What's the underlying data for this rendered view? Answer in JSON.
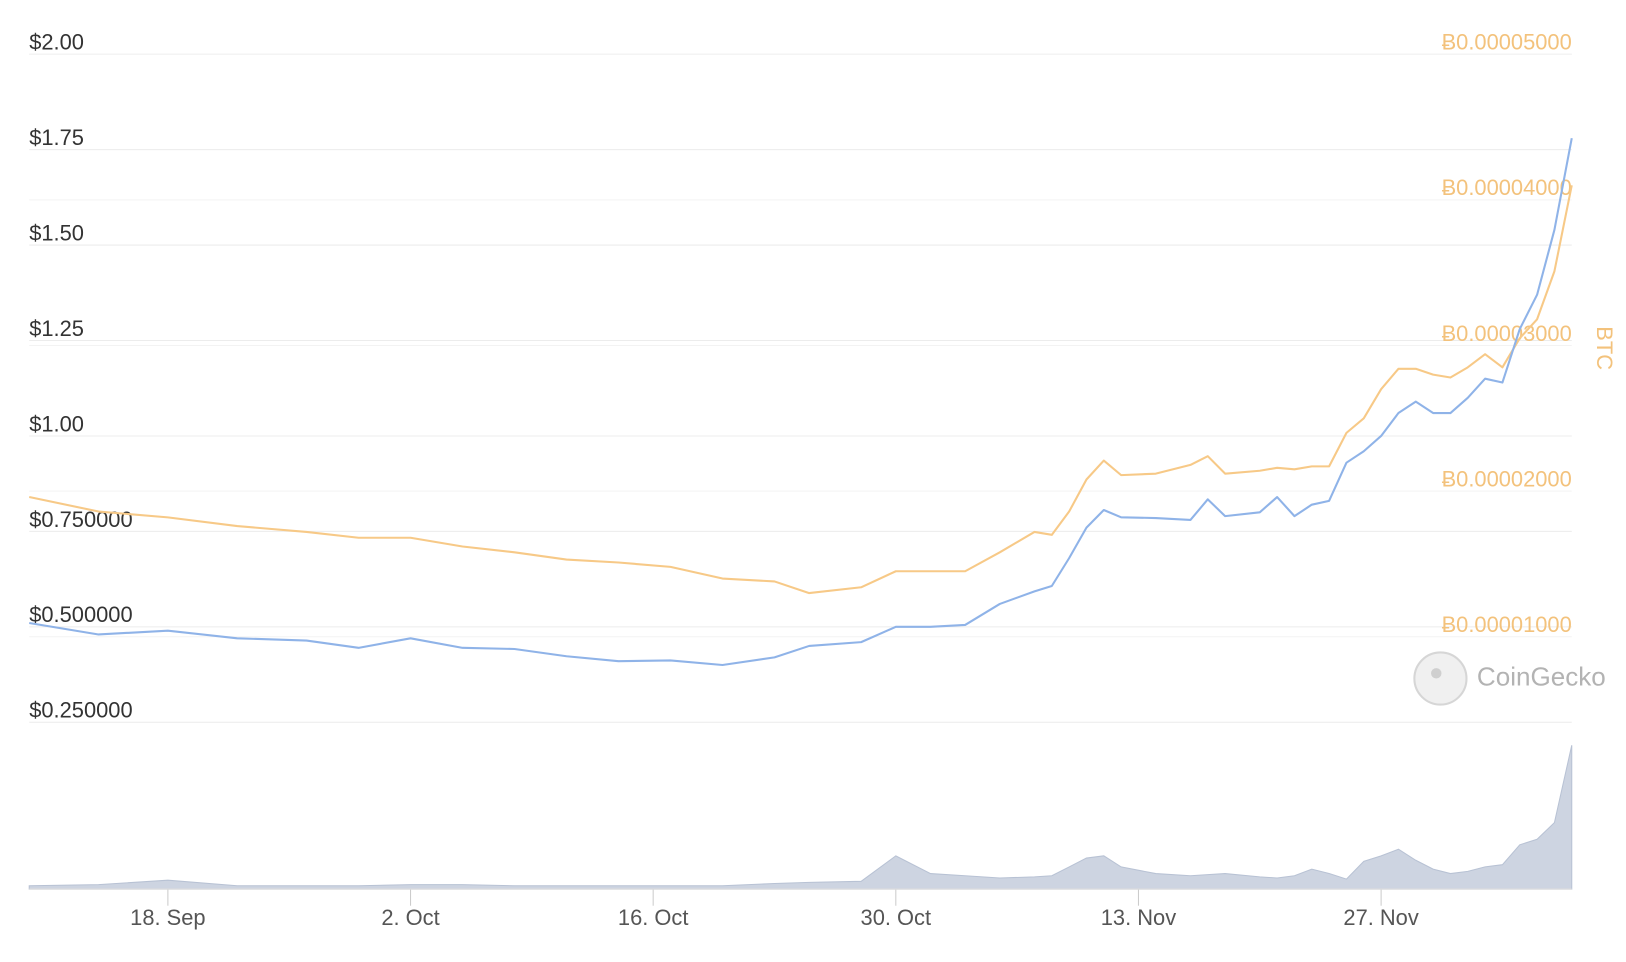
{
  "chart_data": {
    "type": "line",
    "y2label": "BTC",
    "watermark": "CoinGecko",
    "x": [
      "10. Sep",
      "14. Sep",
      "18. Sep",
      "22. Sep",
      "26. Sep",
      "29. Sep",
      "2. Oct",
      "5. Oct",
      "8. Oct",
      "11. Oct",
      "14. Oct",
      "17. Oct",
      "20. Oct",
      "23. Oct",
      "25. Oct",
      "28. Oct",
      "30. Oct",
      "1. Nov",
      "3. Nov",
      "5. Nov",
      "7. Nov",
      "8. Nov",
      "9. Nov",
      "10. Nov",
      "11. Nov",
      "12. Nov",
      "14. Nov",
      "16. Nov",
      "17. Nov",
      "18. Nov",
      "20. Nov",
      "21. Nov",
      "22. Nov",
      "23. Nov",
      "24. Nov",
      "25. Nov",
      "26. Nov",
      "27. Nov",
      "28. Nov",
      "29. Nov",
      "30. Nov",
      "1. Dec",
      "2. Dec",
      "3. Dec",
      "4. Dec",
      "5. Dec",
      "6. Dec",
      "7. Dec",
      "8. Dec"
    ],
    "series": [
      {
        "color": "#8fb3e8",
        "axis": "y",
        "values": [
          0.51,
          0.48,
          0.49,
          0.47,
          0.464,
          0.445,
          0.47,
          0.445,
          0.442,
          0.423,
          0.41,
          0.412,
          0.4,
          0.42,
          0.45,
          0.46,
          0.5,
          0.5,
          0.505,
          0.56,
          0.593,
          0.607,
          0.68,
          0.76,
          0.806,
          0.787,
          0.785,
          0.78,
          0.834,
          0.79,
          0.8,
          0.84,
          0.79,
          0.82,
          0.83,
          0.93,
          0.96,
          1.0,
          1.06,
          1.09,
          1.06,
          1.06,
          1.1,
          1.15,
          1.14,
          1.28,
          1.37,
          1.54,
          1.78
        ]
      },
      {
        "color": "#f7c987",
        "axis": "y2",
        "values": [
          1.96e-05,
          1.86e-05,
          1.82e-05,
          1.76e-05,
          1.72e-05,
          1.68e-05,
          1.68e-05,
          1.62e-05,
          1.58e-05,
          1.53e-05,
          1.51e-05,
          1.48e-05,
          1.4e-05,
          1.38e-05,
          1.3e-05,
          1.34e-05,
          1.45e-05,
          1.45e-05,
          1.45e-05,
          1.58e-05,
          1.72e-05,
          1.7e-05,
          1.86e-05,
          2.08e-05,
          2.21e-05,
          2.11e-05,
          2.12e-05,
          2.18e-05,
          2.24e-05,
          2.12e-05,
          2.14e-05,
          2.16e-05,
          2.15e-05,
          2.17e-05,
          2.17e-05,
          2.4e-05,
          2.5e-05,
          2.7e-05,
          2.84e-05,
          2.84e-05,
          2.8e-05,
          2.78e-05,
          2.85e-05,
          2.94e-05,
          2.85e-05,
          3.05e-05,
          3.18e-05,
          3.51e-05,
          4.1e-05
        ]
      }
    ],
    "volume": {
      "color": "#cdd4e1",
      "values": [
        3,
        4,
        8,
        3,
        3,
        3,
        4,
        4,
        3,
        3,
        3,
        3,
        3,
        5,
        6,
        7,
        30,
        14,
        12,
        10,
        11,
        12,
        20,
        28,
        30,
        20,
        14,
        12,
        13,
        14,
        11,
        10,
        12,
        18,
        14,
        9,
        25,
        30,
        36,
        26,
        18,
        14,
        16,
        20,
        22,
        40,
        45,
        60,
        130
      ]
    },
    "ylim": [
      0.25,
      2.0
    ],
    "yticks": [
      {
        "value": 2.0,
        "label": "$2.00"
      },
      {
        "value": 1.75,
        "label": "$1.75"
      },
      {
        "value": 1.5,
        "label": "$1.50"
      },
      {
        "value": 1.25,
        "label": "$1.25"
      },
      {
        "value": 1.0,
        "label": "$1.00"
      },
      {
        "value": 0.75,
        "label": "$0.750000"
      },
      {
        "value": 0.5,
        "label": "$0.500000"
      },
      {
        "value": 0.25,
        "label": "$0.250000"
      }
    ],
    "y2lim": [
      4.13e-06,
      5e-05
    ],
    "y2ticks": [
      {
        "value": 5e-05,
        "label": "Ƀ0.00005000"
      },
      {
        "value": 4e-05,
        "label": "Ƀ0.00004000"
      },
      {
        "value": 3e-05,
        "label": "Ƀ0.00003000"
      },
      {
        "value": 2e-05,
        "label": "Ƀ0.00002000"
      },
      {
        "value": 1e-05,
        "label": "Ƀ0.00001000"
      }
    ],
    "xticks": [
      "18. Sep",
      "2. Oct",
      "16. Oct",
      "30. Oct",
      "13. Nov",
      "27. Nov"
    ],
    "xlim": [
      "10. Sep",
      "8. Dec"
    ],
    "grid": true
  }
}
